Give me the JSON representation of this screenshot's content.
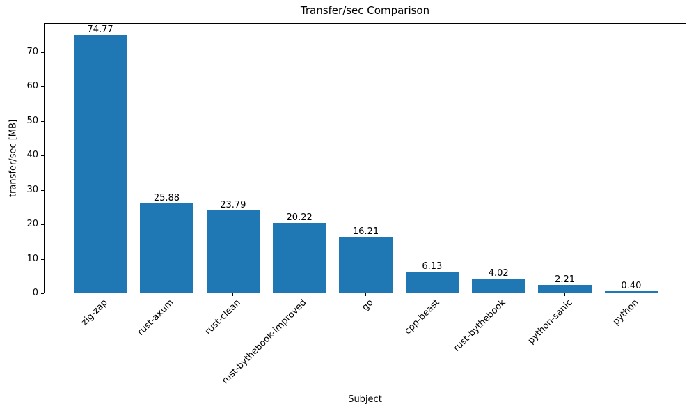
{
  "figure": {
    "background": "#ffffff",
    "text_color": "#000000",
    "spine_color": "#000000"
  },
  "chart_data": {
    "type": "bar",
    "title": "Transfer/sec Comparison",
    "xlabel": "Subject",
    "ylabel": "transfer/sec [MB]",
    "categories": [
      "zig-zap",
      "rust-axum",
      "rust-clean",
      "rust-bythebook-improved",
      "go",
      "cpp-beast",
      "rust-bythebook",
      "python-sanic",
      "python"
    ],
    "values": [
      74.77,
      25.88,
      23.79,
      20.22,
      16.21,
      6.13,
      4.02,
      2.21,
      0.4
    ],
    "value_labels": [
      "74.77",
      "25.88",
      "23.79",
      "20.22",
      "16.21",
      "6.13",
      "4.02",
      "2.21",
      "0.40"
    ],
    "yticks": [
      0,
      10,
      20,
      30,
      40,
      50,
      60,
      70
    ],
    "ylim": [
      0,
      78.5
    ],
    "bar_color": "#1f77b4",
    "grid": false,
    "legend": "none",
    "xtick_rotation_deg": 45
  }
}
